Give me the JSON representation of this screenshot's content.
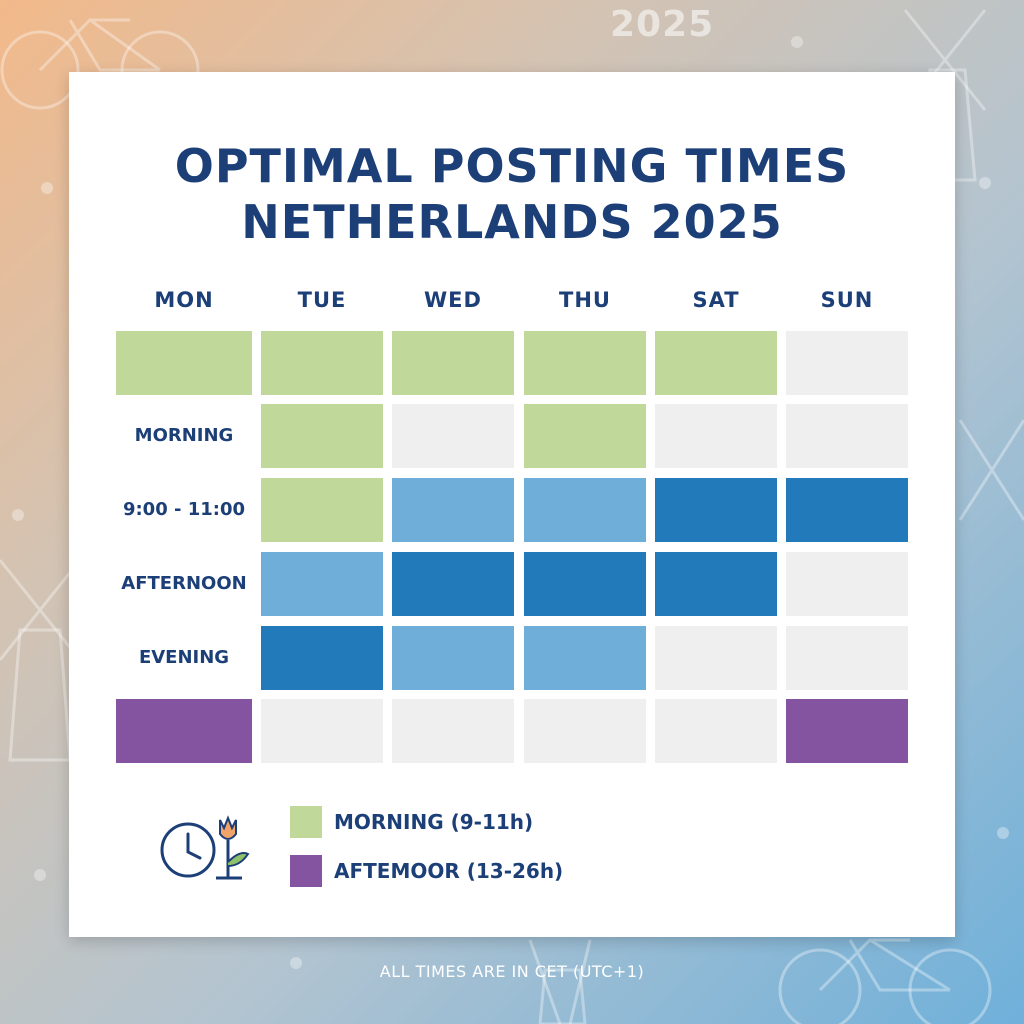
{
  "background": {
    "year_mark": "2025",
    "gradient_colors": [
      "#f2b98a",
      "#b3c4d0",
      "#6fb0da"
    ]
  },
  "title": {
    "line1": "OPTIMAL POSTING TIMES",
    "line2": "NETHERLANDS 2025"
  },
  "days": [
    "MON",
    "TUE",
    "WED",
    "THU",
    "SAT",
    "SUN"
  ],
  "row_labels": [
    "",
    "MORNING",
    "9:00 - 11:00",
    "AFTERNOON",
    "EVENING",
    ""
  ],
  "palette": {
    "green": "#c0d89a",
    "lightblue": "#6faed8",
    "blue": "#237aba",
    "purple": "#8554a0",
    "empty": "#efefef"
  },
  "grid": [
    [
      "green",
      "green",
      "green",
      "green",
      "green",
      "empty"
    ],
    [
      null,
      "green",
      "empty",
      "green",
      "empty",
      "empty"
    ],
    [
      null,
      "green",
      "lightblue",
      "lightblue",
      "blue",
      "blue"
    ],
    [
      null,
      "lightblue",
      "blue",
      "blue",
      "blue",
      "empty"
    ],
    [
      null,
      "blue",
      "lightblue",
      "lightblue",
      "empty",
      "empty"
    ],
    [
      "purple",
      "empty",
      "empty",
      "empty",
      "empty",
      "purple"
    ]
  ],
  "legend": {
    "icon": "clock-tulip-icon",
    "items": [
      {
        "label": "MORNING (9-11h)",
        "color": "#c0d89a"
      },
      {
        "label": "AFTEMOOR (13-26h)",
        "color": "#8554a0"
      }
    ]
  },
  "footer": "ALL TIMES ARE IN CET (UTC+1)"
}
